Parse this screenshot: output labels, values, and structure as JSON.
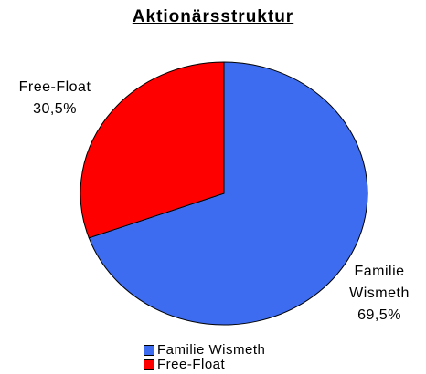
{
  "chart_data": {
    "type": "pie",
    "title": "Aktionärsstruktur",
    "categories": [
      "Familie Wismeth",
      "Free-Float"
    ],
    "values": [
      69.5,
      30.5
    ],
    "value_labels": [
      "69,5%",
      "30,5%"
    ],
    "colors": [
      "#3d6cf0",
      "#ff0000"
    ]
  }
}
